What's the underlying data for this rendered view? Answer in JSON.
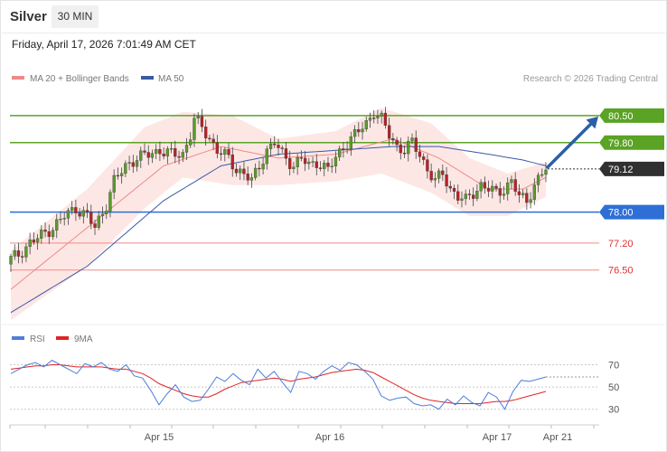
{
  "header": {
    "instrument": "Silver",
    "timeframe": "30 MIN",
    "datetime": "Friday, April 17, 2026 7:01:49 AM CET"
  },
  "legend": {
    "bollinger_label": "MA 20 + Bollinger Bands",
    "ma50_label": "MA 50",
    "rsi_label": "RSI",
    "rsi_ma_label": "9MA"
  },
  "copyright": "Research © 2026 Trading Central",
  "colors": {
    "up_candle": "#5a9a2c",
    "down_candle": "#b2242a",
    "bollinger_fill": "#fde3e0",
    "ma20": "#f08a86",
    "ma50": "#3a59a6",
    "resistance": "#5aa324",
    "pivot": "#2d6fd6",
    "support": "#f08a86",
    "arrow": "#2b5fa8",
    "rsi": "#4f7ed8",
    "rsi_ma": "#e02424",
    "current_price_bg": "#303030"
  },
  "chart_data": [
    {
      "type": "candlestick",
      "title": "Silver",
      "timeframe": "30 MIN",
      "x_tick_labels": [
        "Apr 15",
        "Apr 16",
        "Apr 17",
        "Apr 21"
      ],
      "ylim": [
        75.3,
        81.2
      ],
      "current_price": 79.12,
      "levels": [
        {
          "value": 80.5,
          "label": "80.50",
          "kind": "resistance"
        },
        {
          "value": 79.8,
          "label": "79.80",
          "kind": "resistance"
        },
        {
          "value": 78.0,
          "label": "78.00",
          "kind": "pivot"
        },
        {
          "value": 77.2,
          "label": "77.20",
          "kind": "support"
        },
        {
          "value": 76.5,
          "label": "76.50",
          "kind": "support"
        }
      ],
      "forecast_arrow": {
        "from": 79.12,
        "to": 80.5,
        "direction": "up"
      },
      "close_trajectory": [
        [
          0,
          76.8
        ],
        [
          2,
          76.9
        ],
        [
          5,
          77.2
        ],
        [
          8,
          77.4
        ],
        [
          11,
          77.6
        ],
        [
          14,
          77.9
        ],
        [
          17,
          78.1
        ],
        [
          20,
          77.9
        ],
        [
          22,
          77.6
        ],
        [
          25,
          78.2
        ],
        [
          27,
          78.8
        ],
        [
          30,
          79.2
        ],
        [
          33,
          79.4
        ],
        [
          36,
          79.5
        ],
        [
          39,
          79.6
        ],
        [
          42,
          79.5
        ],
        [
          45,
          79.5
        ],
        [
          47,
          80.0
        ],
        [
          48,
          80.4
        ],
        [
          50,
          80.2
        ],
        [
          52,
          79.9
        ],
        [
          54,
          79.6
        ],
        [
          57,
          79.4
        ],
        [
          59,
          79.1
        ],
        [
          61,
          79.0
        ],
        [
          63,
          78.8
        ],
        [
          65,
          79.2
        ],
        [
          67,
          79.6
        ],
        [
          69,
          79.8
        ],
        [
          71,
          79.5
        ],
        [
          74,
          79.2
        ],
        [
          76,
          79.4
        ],
        [
          78,
          79.2
        ],
        [
          80,
          79.3
        ],
        [
          83,
          79.1
        ],
        [
          85,
          79.4
        ],
        [
          87,
          79.7
        ],
        [
          89,
          79.9
        ],
        [
          91,
          80.1
        ],
        [
          93,
          80.3
        ],
        [
          95,
          80.6
        ],
        [
          97,
          80.4
        ],
        [
          99,
          80.0
        ],
        [
          101,
          79.7
        ],
        [
          103,
          79.6
        ],
        [
          105,
          79.8
        ],
        [
          107,
          79.5
        ],
        [
          109,
          79.1
        ],
        [
          111,
          78.8
        ],
        [
          113,
          79.0
        ],
        [
          115,
          78.6
        ],
        [
          117,
          78.4
        ],
        [
          119,
          78.3
        ],
        [
          121,
          78.5
        ],
        [
          123,
          78.7
        ],
        [
          125,
          78.6
        ],
        [
          127,
          78.5
        ],
        [
          129,
          78.6
        ],
        [
          131,
          78.8
        ],
        [
          133,
          78.4
        ],
        [
          135,
          78.3
        ],
        [
          137,
          78.7
        ],
        [
          139,
          79.0
        ],
        [
          140,
          79.12
        ]
      ],
      "ma20_trajectory": [
        [
          0,
          76.0
        ],
        [
          20,
          77.6
        ],
        [
          40,
          79.2
        ],
        [
          55,
          79.7
        ],
        [
          70,
          79.4
        ],
        [
          85,
          79.5
        ],
        [
          100,
          79.9
        ],
        [
          112,
          79.4
        ],
        [
          125,
          78.6
        ],
        [
          134,
          78.6
        ],
        [
          140,
          78.9
        ]
      ],
      "ma50_trajectory": [
        [
          0,
          75.4
        ],
        [
          20,
          76.6
        ],
        [
          40,
          78.3
        ],
        [
          55,
          79.2
        ],
        [
          70,
          79.5
        ],
        [
          85,
          79.6
        ],
        [
          100,
          79.7
        ],
        [
          112,
          79.7
        ],
        [
          125,
          79.5
        ],
        [
          134,
          79.35
        ],
        [
          140,
          79.2
        ]
      ],
      "bollinger_upper": [
        [
          0,
          77.0
        ],
        [
          20,
          78.6
        ],
        [
          35,
          80.2
        ],
        [
          45,
          80.6
        ],
        [
          58,
          80.5
        ],
        [
          70,
          79.9
        ],
        [
          85,
          80.1
        ],
        [
          97,
          80.7
        ],
        [
          110,
          80.3
        ],
        [
          120,
          79.4
        ],
        [
          130,
          79.0
        ],
        [
          140,
          79.3
        ]
      ],
      "bollinger_lower": [
        [
          0,
          75.2
        ],
        [
          20,
          76.6
        ],
        [
          35,
          78.1
        ],
        [
          45,
          78.9
        ],
        [
          58,
          78.7
        ],
        [
          70,
          78.7
        ],
        [
          85,
          78.8
        ],
        [
          97,
          79.0
        ],
        [
          110,
          78.5
        ],
        [
          120,
          77.9
        ],
        [
          130,
          77.9
        ],
        [
          140,
          78.4
        ]
      ]
    },
    {
      "type": "line",
      "title": "RSI",
      "series": [
        {
          "name": "RSI",
          "values": [
            62,
            66,
            70,
            72,
            68,
            74,
            70,
            66,
            62,
            71,
            68,
            72,
            66,
            64,
            70,
            60,
            58,
            47,
            34,
            44,
            52,
            41,
            37,
            38,
            48,
            59,
            55,
            62,
            56,
            52,
            66,
            58,
            64,
            54,
            45,
            64,
            62,
            57,
            64,
            69,
            65,
            72,
            70,
            64,
            57,
            42,
            38,
            40,
            41,
            35,
            33,
            34,
            30,
            39,
            34,
            42,
            36,
            33,
            45,
            41,
            30,
            46,
            56,
            55,
            57,
            59
          ]
        },
        {
          "name": "9MA",
          "values": [
            66,
            67,
            68,
            69,
            69,
            70,
            70,
            69,
            68,
            68,
            68,
            68,
            67,
            66,
            66,
            64,
            62,
            58,
            53,
            50,
            47,
            44,
            42,
            41,
            41,
            44,
            48,
            51,
            54,
            55,
            56,
            57,
            58,
            57,
            55,
            57,
            58,
            59,
            61,
            63,
            64,
            65,
            66,
            65,
            63,
            59,
            55,
            51,
            47,
            43,
            40,
            38,
            37,
            36,
            35,
            35,
            35,
            35,
            36,
            37,
            37,
            38,
            40,
            42,
            44,
            46
          ]
        }
      ],
      "ylim": [
        20,
        85
      ],
      "y_ticks": [
        70,
        50,
        30
      ]
    }
  ]
}
